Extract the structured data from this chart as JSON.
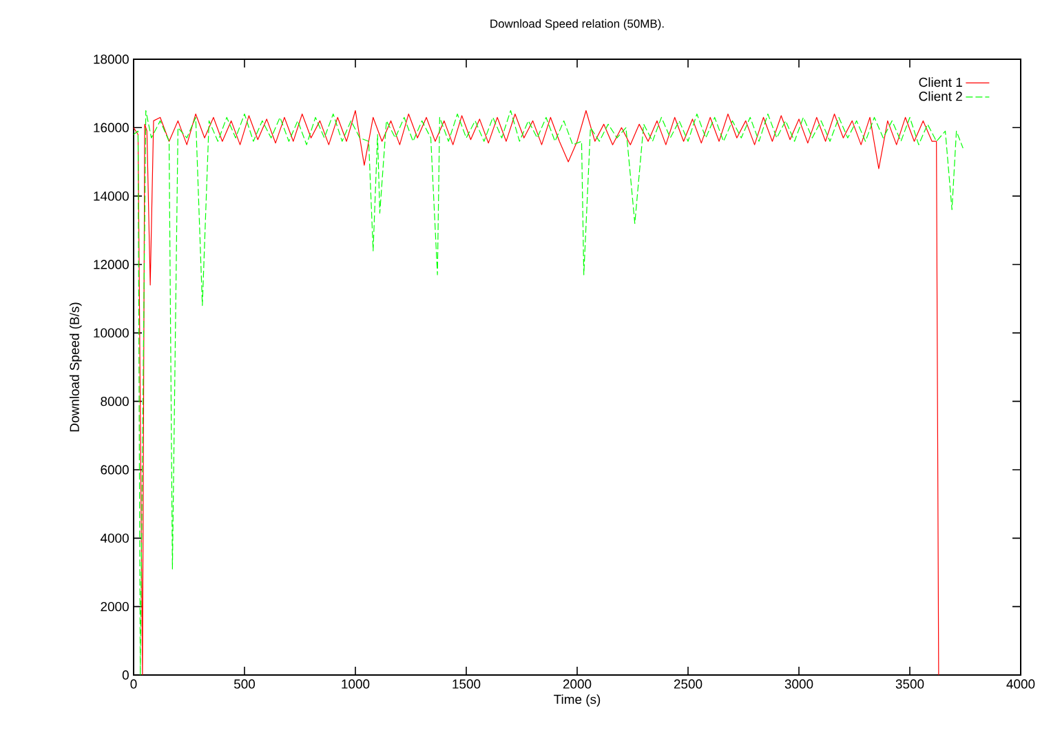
{
  "chart_data": {
    "type": "line",
    "title": "Download Speed relation (50MB).",
    "xlabel": "Time (s)",
    "ylabel": "Download Speed (B/s)",
    "xlim": [
      0,
      4000
    ],
    "ylim": [
      0,
      18000
    ],
    "xticks": [
      0,
      500,
      1000,
      1500,
      2000,
      2500,
      3000,
      3500,
      4000
    ],
    "yticks": [
      0,
      2000,
      4000,
      6000,
      8000,
      10000,
      12000,
      14000,
      16000,
      18000
    ],
    "legend": "top right",
    "series": [
      {
        "name": "Client 1",
        "color": "#ff0000",
        "line_style": "solid",
        "x": [
          0,
          20,
          40,
          50,
          60,
          75,
          90,
          120,
          160,
          200,
          240,
          280,
          320,
          360,
          400,
          440,
          480,
          520,
          560,
          600,
          640,
          680,
          720,
          760,
          800,
          840,
          880,
          920,
          960,
          1000,
          1040,
          1080,
          1120,
          1160,
          1200,
          1240,
          1280,
          1320,
          1360,
          1400,
          1440,
          1480,
          1520,
          1560,
          1600,
          1640,
          1680,
          1720,
          1760,
          1800,
          1840,
          1880,
          1920,
          1960,
          2000,
          2040,
          2080,
          2120,
          2160,
          2200,
          2240,
          2280,
          2320,
          2360,
          2400,
          2440,
          2480,
          2520,
          2560,
          2600,
          2640,
          2680,
          2720,
          2760,
          2800,
          2840,
          2880,
          2920,
          2960,
          3000,
          3040,
          3080,
          3120,
          3160,
          3200,
          3240,
          3280,
          3320,
          3360,
          3400,
          3440,
          3480,
          3520,
          3560,
          3600,
          3620,
          3630
        ],
        "values": [
          16000,
          15800,
          0,
          16100,
          15900,
          11400,
          16200,
          16300,
          15600,
          16200,
          15500,
          16400,
          15700,
          16300,
          15600,
          16200,
          15500,
          16350,
          15650,
          16250,
          15550,
          16300,
          15600,
          16400,
          15700,
          16200,
          15500,
          16300,
          15600,
          16500,
          14900,
          16300,
          15600,
          16200,
          15500,
          16400,
          15700,
          16300,
          15600,
          16200,
          15500,
          16350,
          15650,
          16250,
          15550,
          16300,
          15600,
          16400,
          15700,
          16200,
          15500,
          16300,
          15600,
          15000,
          15600,
          16500,
          15600,
          16100,
          15500,
          16000,
          15500,
          16100,
          15600,
          16200,
          15500,
          16300,
          15600,
          16250,
          15550,
          16300,
          15600,
          16400,
          15700,
          16200,
          15500,
          16300,
          15600,
          16350,
          15650,
          16250,
          15550,
          16300,
          15600,
          16400,
          15700,
          16200,
          15500,
          16300,
          14800,
          16200,
          15500,
          16300,
          15600,
          16200,
          15600,
          15600,
          0
        ]
      },
      {
        "name": "Client 2",
        "color": "#00ff00",
        "line_style": "dashed",
        "x": [
          0,
          20,
          30,
          55,
          80,
          120,
          160,
          175,
          200,
          240,
          280,
          310,
          340,
          380,
          420,
          460,
          500,
          540,
          580,
          620,
          660,
          700,
          740,
          780,
          820,
          860,
          900,
          940,
          980,
          1020,
          1060,
          1080,
          1100,
          1110,
          1140,
          1180,
          1220,
          1260,
          1300,
          1340,
          1370,
          1380,
          1420,
          1460,
          1500,
          1540,
          1580,
          1620,
          1660,
          1700,
          1740,
          1780,
          1820,
          1860,
          1900,
          1940,
          1980,
          2020,
          2030,
          2060,
          2100,
          2140,
          2180,
          2220,
          2260,
          2300,
          2340,
          2380,
          2420,
          2460,
          2500,
          2540,
          2580,
          2620,
          2660,
          2700,
          2740,
          2780,
          2820,
          2860,
          2900,
          2940,
          2980,
          3020,
          3060,
          3100,
          3140,
          3180,
          3220,
          3260,
          3300,
          3340,
          3380,
          3420,
          3460,
          3500,
          3540,
          3580,
          3620,
          3660,
          3690,
          3710,
          3740
        ],
        "values": [
          15800,
          15900,
          0,
          16500,
          15700,
          16200,
          15600,
          3100,
          16000,
          15700,
          16300,
          10800,
          16200,
          15600,
          16300,
          15700,
          16400,
          15600,
          16200,
          15700,
          16300,
          15600,
          16200,
          15500,
          16300,
          15700,
          16400,
          15600,
          16200,
          15700,
          15600,
          12400,
          15800,
          13500,
          16200,
          15700,
          16300,
          15600,
          16200,
          15700,
          11700,
          16300,
          15600,
          16400,
          15700,
          16200,
          15600,
          16300,
          15700,
          16500,
          15600,
          16200,
          15700,
          16300,
          15600,
          16200,
          15500,
          15600,
          11700,
          16000,
          15600,
          16100,
          15700,
          16000,
          13200,
          16100,
          15600,
          16300,
          15700,
          16200,
          15600,
          16400,
          15700,
          16300,
          15600,
          16200,
          15700,
          16300,
          15600,
          16400,
          15700,
          16200,
          15600,
          16300,
          15700,
          16200,
          15600,
          16300,
          15700,
          16200,
          15600,
          16300,
          15700,
          16200,
          15600,
          16300,
          15500,
          16100,
          15600,
          15900,
          13600,
          15900,
          15400
        ]
      }
    ]
  }
}
